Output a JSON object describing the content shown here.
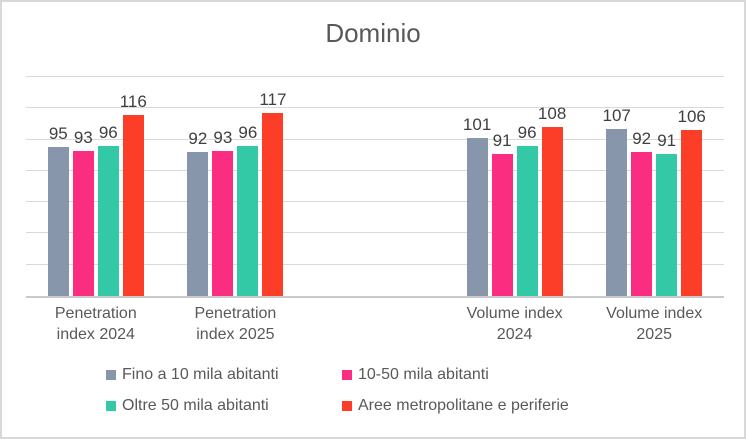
{
  "chart_data": {
    "type": "bar",
    "title": "Dominio",
    "categories": [
      "Penetration index 2024",
      "Penetration index 2025",
      "Volume index 2024",
      "Volume index 2025"
    ],
    "categories_display": [
      "Penetration\nindex 2024",
      "Penetration\nindex 2025",
      "Volume index\n2024",
      "Volume index\n2025"
    ],
    "series": [
      {
        "name": "Fino a 10 mila abitanti",
        "color": "#8896AB",
        "values": [
          95,
          92,
          101,
          107
        ]
      },
      {
        "name": "10-50 mila abitanti",
        "color": "#FB2D81",
        "values": [
          93,
          93,
          91,
          92
        ]
      },
      {
        "name": "Oltre 50 mila abitanti",
        "color": "#33C8A6",
        "values": [
          96,
          96,
          96,
          91
        ]
      },
      {
        "name": "Aree metropolitane e periferie",
        "color": "#FC3D27",
        "values": [
          116,
          117,
          108,
          106
        ]
      }
    ],
    "xlabel": "",
    "ylabel": "",
    "ylim": [
      0,
      140
    ],
    "gridline_step": 20,
    "grid": true,
    "y_axis_labels_visible": false,
    "data_labels": true,
    "legend_position": "bottom",
    "colors": {
      "gridline": "#D9D9D9",
      "axis_line": "#C9C9C9",
      "frame_border": "#D8D8D8",
      "title_text": "#595959",
      "value_label_text": "#404040"
    },
    "layout": {
      "slots_total": 5,
      "slot_indices": [
        0,
        1,
        3,
        4
      ]
    }
  }
}
